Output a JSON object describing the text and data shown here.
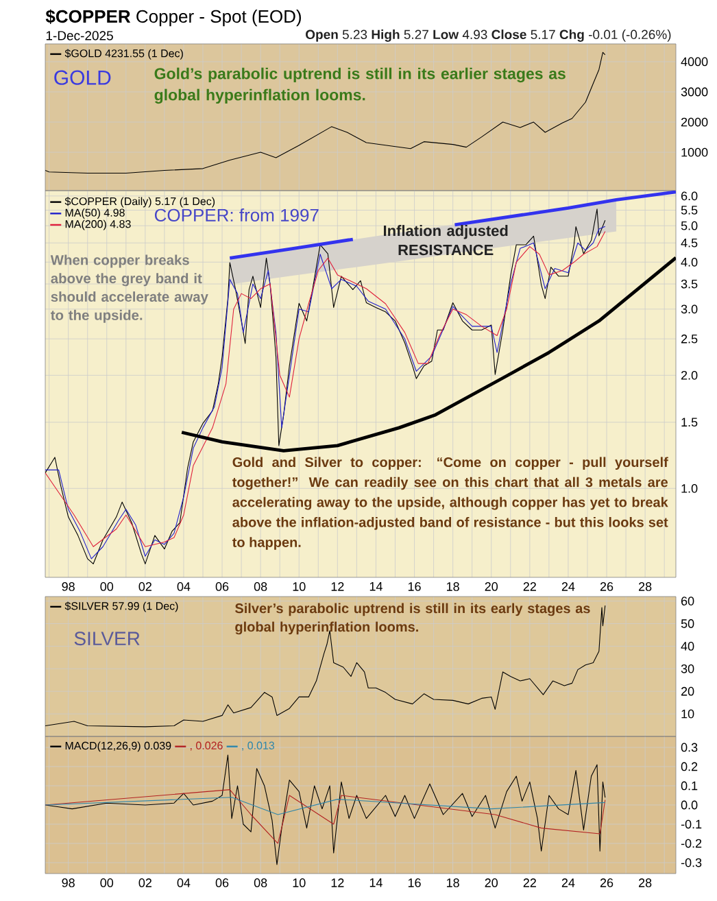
{
  "chart_data": [
    {
      "type": "line",
      "title": "**$COPPER** Copper - Spot (EOD)",
      "subtitle": "1-Dec-2025",
      "annotations": [
        "**Open** 5.23 **High** 5.27 **Low** 4.93 **Close** 5.17 **Chg** -0.01 (-0.26%)",
        "GOLD",
        "Gold’s parabolic uptrend is still in its earlier stages as global hyperinflation looms."
      ],
      "series": [
        {
          "name": "$GOLD 4231.55 (1 Dec)",
          "color": "#000000",
          "x": [
            1996.8,
            1997.0,
            1999.0,
            2001.0,
            2003.0,
            2005.0,
            2006.4,
            2008.0,
            2008.8,
            2010.0,
            2011.7,
            2012.5,
            2013.5,
            2015.8,
            2016.5,
            2018.0,
            2018.7,
            2019.5,
            2020.6,
            2021.5,
            2022.2,
            2022.8,
            2023.7,
            2024.2,
            2024.9,
            2025.3,
            2025.6,
            2025.8,
            2025.92
          ],
          "values": [
            400,
            350,
            310,
            310,
            400,
            460,
            740,
            1000,
            820,
            1230,
            1850,
            1660,
            1320,
            1120,
            1350,
            1260,
            1170,
            1510,
            2000,
            1820,
            2000,
            1660,
            1970,
            2120,
            2660,
            3280,
            3740,
            4310,
            4230
          ]
        }
      ],
      "xlim": [
        1996.8,
        2029.6
      ],
      "ylim": [
        -270,
        4590
      ],
      "yticks": [
        1000,
        2000,
        3000,
        4000
      ],
      "xticks": [
        {
          "value": 1997,
          "label": null
        },
        {
          "value": 1998,
          "label": null
        },
        {
          "value": 1999,
          "label": null
        },
        {
          "value": 2000,
          "label": null
        },
        {
          "value": 2001,
          "label": null
        },
        {
          "value": 2002,
          "label": null
        },
        {
          "value": 2003,
          "label": null
        },
        {
          "value": 2004,
          "label": null
        },
        {
          "value": 2005,
          "label": null
        },
        {
          "value": 2006,
          "label": null
        },
        {
          "value": 2007,
          "label": null
        },
        {
          "value": 2008,
          "label": null
        },
        {
          "value": 2009,
          "label": null
        },
        {
          "value": 2010,
          "label": null
        },
        {
          "value": 2011,
          "label": null
        },
        {
          "value": 2012,
          "label": null
        },
        {
          "value": 2013,
          "label": null
        },
        {
          "value": 2014,
          "label": null
        },
        {
          "value": 2015,
          "label": null
        },
        {
          "value": 2016,
          "label": null
        },
        {
          "value": 2017,
          "label": null
        },
        {
          "value": 2018,
          "label": null
        },
        {
          "value": 2019,
          "label": null
        },
        {
          "value": 2020,
          "label": null
        },
        {
          "value": 2021,
          "label": null
        },
        {
          "value": 2022,
          "label": null
        },
        {
          "value": 2023,
          "label": null
        },
        {
          "value": 2024,
          "label": null
        },
        {
          "value": 2025,
          "label": null
        },
        {
          "value": 2026,
          "label": null
        },
        {
          "value": 2027,
          "label": null
        },
        {
          "value": 2028,
          "label": null
        },
        {
          "value": 2029,
          "label": null
        }
      ],
      "tick_labels": "y",
      "grid": true,
      "legend": "top left"
    },
    {
      "type": "line",
      "log": true,
      "annotations": [
        "COPPER: from 1997",
        "Inflation adjusted RESISTANCE",
        "When copper breaks above the grey band it should accelerate away to the upside.",
        "Gold and Silver to copper: “Come on copper - pull yourself together!” We can readily see on this chart that all 3 metals are accelerating away to the upside, although copper has yet to break above the inflation-adjusted band of resistance - but this looks set to happen."
      ],
      "series": [
        {
          "name": "$COPPER (Daily) 5.17 (1 Dec)",
          "color": "#000000",
          "x": [
            1996.8,
            1997.3,
            1997.6,
            1998.0,
            1998.5,
            1999.0,
            1999.3,
            1999.8,
            2000.5,
            2000.8,
            2001.3,
            2001.8,
            2002.0,
            2002.5,
            2003.0,
            2003.4,
            2003.8,
            2004.2,
            2004.5,
            2005.0,
            2005.5,
            2005.8,
            2006.0,
            2006.3,
            2006.4,
            2006.7,
            2007.0,
            2007.2,
            2007.4,
            2007.6,
            2008.0,
            2008.3,
            2008.5,
            2008.8,
            2008.95,
            2009.2,
            2009.5,
            2010.0,
            2010.4,
            2010.7,
            2011.1,
            2011.5,
            2011.8,
            2012.2,
            2012.8,
            2013.2,
            2013.5,
            2014.0,
            2014.5,
            2015.0,
            2015.5,
            2015.9,
            2016.1,
            2016.5,
            2016.9,
            2017.2,
            2017.5,
            2018.0,
            2018.5,
            2019.0,
            2019.5,
            2020.0,
            2020.2,
            2020.6,
            2021.0,
            2021.3,
            2021.8,
            2022.2,
            2022.6,
            2022.8,
            2023.1,
            2023.5,
            2024.0,
            2024.3,
            2024.4,
            2024.8,
            2025.2,
            2025.5,
            2025.6,
            2025.92
          ],
          "values": [
            1.1,
            1.21,
            1.02,
            0.84,
            0.75,
            0.65,
            0.63,
            0.73,
            0.84,
            0.92,
            0.81,
            0.67,
            0.63,
            0.75,
            0.69,
            0.77,
            0.81,
            1.13,
            1.33,
            1.49,
            1.61,
            1.9,
            2.24,
            3.2,
            3.99,
            3.38,
            2.79,
            2.43,
            3.38,
            3.67,
            3.03,
            4.1,
            3.48,
            2.24,
            1.3,
            1.57,
            2.12,
            3.11,
            2.79,
            3.38,
            4.45,
            4.21,
            3.03,
            3.67,
            3.38,
            3.57,
            3.12,
            3.03,
            2.95,
            2.79,
            2.44,
            2.12,
            1.96,
            2.12,
            2.18,
            2.64,
            2.64,
            3.12,
            2.79,
            2.64,
            2.64,
            2.72,
            2.01,
            2.64,
            3.67,
            4.45,
            4.45,
            4.69,
            3.48,
            3.2,
            3.88,
            3.67,
            3.67,
            4.45,
            4.97,
            4.21,
            4.57,
            5.54,
            4.7,
            5.17
          ]
        },
        {
          "name": "MA(50) 4.98",
          "color": "#1f1fcc",
          "x": [
            1996.8,
            1997.5,
            1998.0,
            1998.6,
            1999.2,
            1999.8,
            2000.6,
            2001.0,
            2001.5,
            2002.0,
            2002.5,
            2003.0,
            2003.5,
            2004.0,
            2004.5,
            2005.0,
            2005.6,
            2006.0,
            2006.4,
            2006.8,
            2007.1,
            2007.6,
            2008.0,
            2008.4,
            2008.8,
            2009.1,
            2009.5,
            2010.0,
            2010.5,
            2011.1,
            2011.7,
            2012.2,
            2013.0,
            2013.6,
            2014.5,
            2015.5,
            2016.1,
            2016.9,
            2017.5,
            2018.0,
            2019.0,
            2020.0,
            2020.3,
            2021.0,
            2021.5,
            2022.2,
            2022.8,
            2023.3,
            2024.0,
            2024.5,
            2024.9,
            2025.3,
            2025.6,
            2025.92
          ],
          "values": [
            1.12,
            1.12,
            0.88,
            0.77,
            0.65,
            0.7,
            0.82,
            0.88,
            0.8,
            0.66,
            0.73,
            0.71,
            0.76,
            0.95,
            1.28,
            1.45,
            1.65,
            2.1,
            3.6,
            3.3,
            2.6,
            3.5,
            3.2,
            3.8,
            2.6,
            1.45,
            2.0,
            3.0,
            2.95,
            4.2,
            3.4,
            3.6,
            3.45,
            3.15,
            3.0,
            2.5,
            2.05,
            2.25,
            2.65,
            3.05,
            2.7,
            2.7,
            2.3,
            3.5,
            4.35,
            4.5,
            3.4,
            3.85,
            3.75,
            4.5,
            4.3,
            4.5,
            4.9,
            4.98
          ]
        },
        {
          "name": "MA(200) 4.83",
          "color": "#e0203c",
          "x": [
            1996.8,
            1998.3,
            1999.3,
            2000.5,
            2001.0,
            2002.0,
            2003.0,
            2003.5,
            2004.0,
            2004.5,
            2005.5,
            2006.2,
            2006.6,
            2007.0,
            2007.5,
            2008.0,
            2008.5,
            2009.0,
            2009.5,
            2010.0,
            2010.5,
            2011.0,
            2011.5,
            2012.0,
            2012.5,
            2013.5,
            2014.5,
            2015.5,
            2016.2,
            2016.7,
            2017.3,
            2018.0,
            2018.7,
            2019.5,
            2020.3,
            2020.8,
            2021.3,
            2022.0,
            2022.5,
            2023.0,
            2023.7,
            2024.3,
            2024.8,
            2025.5,
            2025.92
          ],
          "values": [
            1.1,
            0.85,
            0.7,
            0.78,
            0.85,
            0.7,
            0.72,
            0.74,
            0.85,
            1.15,
            1.45,
            1.9,
            3.0,
            3.3,
            3.2,
            3.4,
            3.5,
            2.0,
            1.75,
            2.5,
            3.1,
            3.8,
            4.1,
            3.7,
            3.6,
            3.4,
            3.1,
            2.6,
            2.15,
            2.15,
            2.55,
            3.0,
            2.9,
            2.7,
            2.55,
            3.0,
            4.0,
            4.4,
            4.2,
            3.7,
            3.8,
            4.0,
            4.2,
            4.4,
            4.83
          ]
        },
        {
          "color": "#3333ee",
          "x": [
            2006.4,
            2009.6,
            2012.8,
            2015.5,
            2018.1,
            2024.0,
            2026.5,
            2029.6
          ],
          "values": [
            4.1,
            4.34,
            4.6,
            null,
            5.03,
            5.57,
            5.86,
            6.15
          ],
          "lower": [
            3.49,
            3.68,
            3.87,
            4.04,
            4.22,
            4.64,
            4.83,
            null
          ],
          "upper": [
            4.1,
            4.34,
            4.59,
            4.82,
            5.04,
            5.6,
            5.85,
            null
          ]
        },
        {
          "color": "#000000",
          "x": [
            2003.9,
            2006.0,
            2009.2,
            2012.0,
            2015.2,
            2017.1,
            2020.7,
            2023.0,
            2025.6,
            2029.6
          ],
          "values": [
            1.41,
            1.33,
            1.26,
            1.3,
            1.45,
            1.57,
            1.98,
            2.3,
            2.79,
            4.11
          ]
        }
      ],
      "xlim": [
        1996.8,
        2029.6
      ],
      "ylim": [
        0.58,
        6.2
      ],
      "yticks": [
        {
          "value": 1.0,
          "label": "1.0"
        },
        {
          "value": 1.5,
          "label": "1.5"
        },
        {
          "value": 2.0,
          "label": "2.0"
        },
        {
          "value": 2.5,
          "label": "2.5"
        },
        {
          "value": 3.0,
          "label": "3.0"
        },
        {
          "value": 3.5,
          "label": "3.5"
        },
        {
          "value": 4.0,
          "label": "4.0"
        },
        {
          "value": 4.5,
          "label": "4.5"
        },
        {
          "value": 5.0,
          "label": "5.0"
        },
        {
          "value": 5.5,
          "label": "5.5"
        },
        {
          "value": 6.0,
          "label": "6.0"
        }
      ],
      "xticks": [
        {
          "value": 1997,
          "label": null
        },
        {
          "value": 1998,
          "label": "98"
        },
        {
          "value": 1999,
          "label": null
        },
        {
          "value": 2000,
          "label": "00"
        },
        {
          "value": 2001,
          "label": null
        },
        {
          "value": 2002,
          "label": "02"
        },
        {
          "value": 2003,
          "label": null
        },
        {
          "value": 2004,
          "label": "04"
        },
        {
          "value": 2005,
          "label": null
        },
        {
          "value": 2006,
          "label": "06"
        },
        {
          "value": 2007,
          "label": null
        },
        {
          "value": 2008,
          "label": "08"
        },
        {
          "value": 2009,
          "label": null
        },
        {
          "value": 2010,
          "label": "10"
        },
        {
          "value": 2011,
          "label": null
        },
        {
          "value": 2012,
          "label": "12"
        },
        {
          "value": 2013,
          "label": null
        },
        {
          "value": 2014,
          "label": "14"
        },
        {
          "value": 2015,
          "label": null
        },
        {
          "value": 2016,
          "label": "16"
        },
        {
          "value": 2017,
          "label": null
        },
        {
          "value": 2018,
          "label": "18"
        },
        {
          "value": 2019,
          "label": null
        },
        {
          "value": 2020,
          "label": "20"
        },
        {
          "value": 2021,
          "label": null
        },
        {
          "value": 2022,
          "label": "22"
        },
        {
          "value": 2023,
          "label": null
        },
        {
          "value": 2024,
          "label": "24"
        },
        {
          "value": 2025,
          "label": null
        },
        {
          "value": 2026,
          "label": "26"
        },
        {
          "value": 2027,
          "label": null
        },
        {
          "value": 2028,
          "label": "28"
        },
        {
          "value": 2029,
          "label": null
        }
      ],
      "grid": true,
      "legend": "top left"
    },
    {
      "type": "line",
      "annotations": [
        "SILVER",
        "Silver’s parabolic uptrend is still in its early stages as global hyperinflation looms."
      ],
      "series": [
        {
          "name": "$SILVER 57.99 (1 Dec)",
          "color": "#000000",
          "x": [
            1996.8,
            1998.3,
            1999.0,
            2002.0,
            2003.5,
            2004.0,
            2005.0,
            2006.0,
            2006.3,
            2006.6,
            2007.5,
            2008.2,
            2008.6,
            2008.85,
            2009.5,
            2010.0,
            2010.5,
            2010.9,
            2011.3,
            2011.45,
            2011.6,
            2011.8,
            2012.3,
            2012.7,
            2013.0,
            2013.4,
            2013.6,
            2014.0,
            2014.5,
            2015.0,
            2015.9,
            2016.5,
            2017.0,
            2018.0,
            2018.8,
            2019.5,
            2020.0,
            2020.2,
            2020.6,
            2021.0,
            2021.5,
            2022.0,
            2022.7,
            2023.2,
            2023.8,
            2024.2,
            2024.5,
            2024.9,
            2025.3,
            2025.6,
            2025.75,
            2025.8,
            2025.92
          ],
          "values": [
            4.7,
            6.7,
            4.7,
            4.3,
            4.7,
            7.3,
            6.7,
            9.3,
            14.0,
            10.4,
            12.8,
            19.5,
            17.5,
            9.3,
            12.4,
            17.5,
            17.5,
            24.6,
            36.8,
            40.8,
            46.9,
            32.7,
            30.7,
            26.6,
            32.7,
            28.6,
            21.5,
            21.5,
            19.5,
            16.4,
            14.4,
            18.9,
            16.4,
            16.0,
            14.4,
            16.9,
            17.5,
            12.0,
            28.6,
            26.6,
            24.6,
            25.6,
            18.5,
            24.6,
            22.5,
            23.6,
            29.6,
            31.7,
            32.7,
            37.8,
            57.1,
            49.0,
            58.0
          ]
        }
      ],
      "xlim": [
        1996.8,
        2029.6
      ],
      "ylim": [
        0,
        62
      ],
      "yticks": [
        10,
        20,
        30,
        40,
        50,
        60
      ],
      "xticks": [
        {
          "value": 1997,
          "label": null
        },
        {
          "value": 1998,
          "label": null
        },
        {
          "value": 1999,
          "label": null
        },
        {
          "value": 2000,
          "label": null
        },
        {
          "value": 2001,
          "label": null
        },
        {
          "value": 2002,
          "label": null
        },
        {
          "value": 2003,
          "label": null
        },
        {
          "value": 2004,
          "label": null
        },
        {
          "value": 2005,
          "label": null
        },
        {
          "value": 2006,
          "label": null
        },
        {
          "value": 2007,
          "label": null
        },
        {
          "value": 2008,
          "label": null
        },
        {
          "value": 2009,
          "label": null
        },
        {
          "value": 2010,
          "label": null
        },
        {
          "value": 2011,
          "label": null
        },
        {
          "value": 2012,
          "label": null
        },
        {
          "value": 2013,
          "label": null
        },
        {
          "value": 2014,
          "label": null
        },
        {
          "value": 2015,
          "label": null
        },
        {
          "value": 2016,
          "label": null
        },
        {
          "value": 2017,
          "label": null
        },
        {
          "value": 2018,
          "label": null
        },
        {
          "value": 2019,
          "label": null
        },
        {
          "value": 2020,
          "label": null
        },
        {
          "value": 2021,
          "label": null
        },
        {
          "value": 2022,
          "label": null
        },
        {
          "value": 2023,
          "label": null
        },
        {
          "value": 2024,
          "label": null
        },
        {
          "value": 2025,
          "label": null
        },
        {
          "value": 2026,
          "label": null
        },
        {
          "value": 2027,
          "label": null
        },
        {
          "value": 2028,
          "label": null
        },
        {
          "value": 2029,
          "label": null
        }
      ],
      "tick_labels": "y",
      "grid": true,
      "legend": "top left"
    },
    {
      "type": "line",
      "series": [
        {
          "name": "MACD(12,26,9) 0.039",
          "color": "#000000",
          "x": [
            1996.8,
            1997.5,
            1998.2,
            2000.0,
            2002.0,
            2003.5,
            2004.0,
            2004.5,
            2005.5,
            2006.0,
            2006.3,
            2006.5,
            2006.8,
            2007.1,
            2007.5,
            2007.8,
            2008.2,
            2008.6,
            2008.85,
            2009.1,
            2009.5,
            2010.0,
            2010.4,
            2010.8,
            2011.2,
            2011.6,
            2011.8,
            2012.2,
            2012.6,
            2013.0,
            2013.5,
            2014.5,
            2015.0,
            2015.5,
            2016.0,
            2016.8,
            2017.5,
            2018.5,
            2019.0,
            2019.7,
            2020.2,
            2020.8,
            2021.3,
            2021.6,
            2022.0,
            2022.4,
            2022.6,
            2023.0,
            2023.5,
            2024.0,
            2024.4,
            2024.8,
            2025.2,
            2025.5,
            2025.65,
            2025.8,
            2025.92
          ],
          "values": [
            0,
            -0.01,
            -0.02,
            0.01,
            0,
            0.01,
            0.06,
            0,
            0.02,
            0.05,
            0.26,
            -0.07,
            0.1,
            -0.1,
            -0.14,
            0.19,
            0.1,
            -0.08,
            -0.31,
            -0.12,
            0.13,
            0.07,
            -0.12,
            0.1,
            -0.02,
            0.1,
            -0.25,
            0.12,
            -0.07,
            0.05,
            -0.07,
            0.05,
            -0.06,
            0.05,
            -0.07,
            0.11,
            -0.05,
            0.06,
            -0.06,
            0.05,
            -0.12,
            0.07,
            0.15,
            0.02,
            0.12,
            -0.07,
            -0.24,
            0.05,
            -0.02,
            -0.05,
            0.18,
            -0.13,
            0.15,
            0.21,
            -0.24,
            0.12,
            0.039
          ]
        },
        {
          "name": ", 0.026",
          "color": "#b22222",
          "x": [
            1996.8,
            2006.4,
            2007.5,
            2008.9,
            2009.5,
            2011.8,
            2012.2,
            2020.2,
            2022.6,
            2025.65,
            2025.92
          ],
          "values": [
            0,
            0.08,
            -0.05,
            -0.2,
            0.05,
            -0.1,
            0.05,
            -0.05,
            -0.12,
            -0.15,
            0.026
          ]
        },
        {
          "name": ", 0.013",
          "color": "#2e86ab",
          "x": [
            1996.8,
            2006.5,
            2008.9,
            2012.0,
            2020.0,
            2025.92
          ],
          "values": [
            0,
            0.04,
            -0.05,
            0.03,
            -0.02,
            0.013
          ]
        }
      ],
      "xlim": [
        1996.8,
        2029.6
      ],
      "ylim": [
        -0.357,
        0.357
      ],
      "yticks": [
        {
          "value": -0.3,
          "label": "-0.3"
        },
        {
          "value": -0.2,
          "label": "-0.2"
        },
        {
          "value": -0.1,
          "label": "-0.1"
        },
        {
          "value": 0,
          "label": "0.0"
        },
        {
          "value": 0.1,
          "label": "0.1"
        },
        {
          "value": 0.2,
          "label": "0.2"
        },
        {
          "value": 0.3,
          "label": "0.3"
        }
      ],
      "xticks": [
        {
          "value": 1997,
          "label": null
        },
        {
          "value": 1998,
          "label": "98"
        },
        {
          "value": 1999,
          "label": null
        },
        {
          "value": 2000,
          "label": "00"
        },
        {
          "value": 2001,
          "label": null
        },
        {
          "value": 2002,
          "label": "02"
        },
        {
          "value": 2003,
          "label": null
        },
        {
          "value": 2004,
          "label": "04"
        },
        {
          "value": 2005,
          "label": null
        },
        {
          "value": 2006,
          "label": "06"
        },
        {
          "value": 2007,
          "label": null
        },
        {
          "value": 2008,
          "label": "08"
        },
        {
          "value": 2009,
          "label": null
        },
        {
          "value": 2010,
          "label": "10"
        },
        {
          "value": 2011,
          "label": null
        },
        {
          "value": 2012,
          "label": "12"
        },
        {
          "value": 2013,
          "label": null
        },
        {
          "value": 2014,
          "label": "14"
        },
        {
          "value": 2015,
          "label": null
        },
        {
          "value": 2016,
          "label": "16"
        },
        {
          "value": 2017,
          "label": null
        },
        {
          "value": 2018,
          "label": "18"
        },
        {
          "value": 2019,
          "label": null
        },
        {
          "value": 2020,
          "label": "20"
        },
        {
          "value": 2021,
          "label": null
        },
        {
          "value": 2022,
          "label": "22"
        },
        {
          "value": 2023,
          "label": null
        },
        {
          "value": 2024,
          "label": "24"
        },
        {
          "value": 2025,
          "label": null
        },
        {
          "value": 2026,
          "label": "26"
        },
        {
          "value": 2027,
          "label": null
        },
        {
          "value": 2028,
          "label": "28"
        },
        {
          "value": 2029,
          "label": null
        }
      ],
      "grid": true,
      "legend": "top left"
    }
  ]
}
